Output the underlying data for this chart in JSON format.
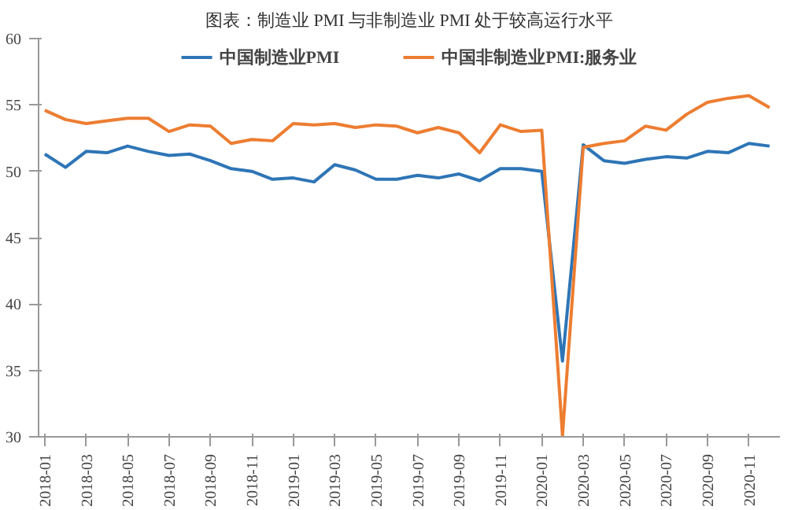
{
  "chart_data": {
    "type": "line",
    "title": "图表：制造业 PMI 与非制造业 PMI 处于较高运行水平",
    "categories": [
      "2018-01",
      null,
      "2018-03",
      null,
      "2018-05",
      null,
      "2018-07",
      null,
      "2018-09",
      null,
      "2018-11",
      null,
      "2019-01",
      null,
      "2019-03",
      null,
      "2019-05",
      null,
      "2019-07",
      null,
      "2019-09",
      null,
      "2019-11",
      null,
      "2020-01",
      null,
      "2020-03",
      null,
      "2020-05",
      null,
      "2020-07",
      null,
      "2020-09",
      null,
      "2020-11",
      null
    ],
    "series": [
      {
        "name": "中国制造业PMI",
        "color": "#2e75b6",
        "values": [
          51.3,
          50.3,
          51.5,
          51.4,
          51.9,
          51.5,
          51.2,
          51.3,
          50.8,
          50.2,
          50.0,
          49.4,
          49.5,
          49.2,
          50.5,
          50.1,
          49.4,
          49.4,
          49.7,
          49.5,
          49.8,
          49.3,
          50.2,
          50.2,
          50.0,
          35.7,
          52.0,
          50.8,
          50.6,
          50.9,
          51.1,
          51.0,
          51.5,
          51.4,
          52.1,
          51.9
        ]
      },
      {
        "name": "中国非制造业PMI:服务业",
        "color": "#ed7d31",
        "values": [
          54.6,
          53.9,
          53.6,
          53.8,
          54.0,
          54.0,
          53.0,
          53.5,
          53.4,
          52.1,
          52.4,
          52.3,
          53.6,
          53.5,
          53.6,
          53.3,
          53.5,
          53.4,
          52.9,
          53.3,
          52.9,
          51.4,
          53.5,
          53.0,
          53.1,
          30.1,
          51.8,
          52.1,
          52.3,
          53.4,
          53.1,
          54.3,
          55.2,
          55.5,
          55.7,
          54.8
        ]
      }
    ],
    "ylim": [
      30,
      60
    ],
    "yticks": [
      30,
      35,
      40,
      45,
      50,
      55,
      60
    ],
    "grid": false,
    "legend": "top",
    "marker": "none",
    "line_style": "solid"
  }
}
